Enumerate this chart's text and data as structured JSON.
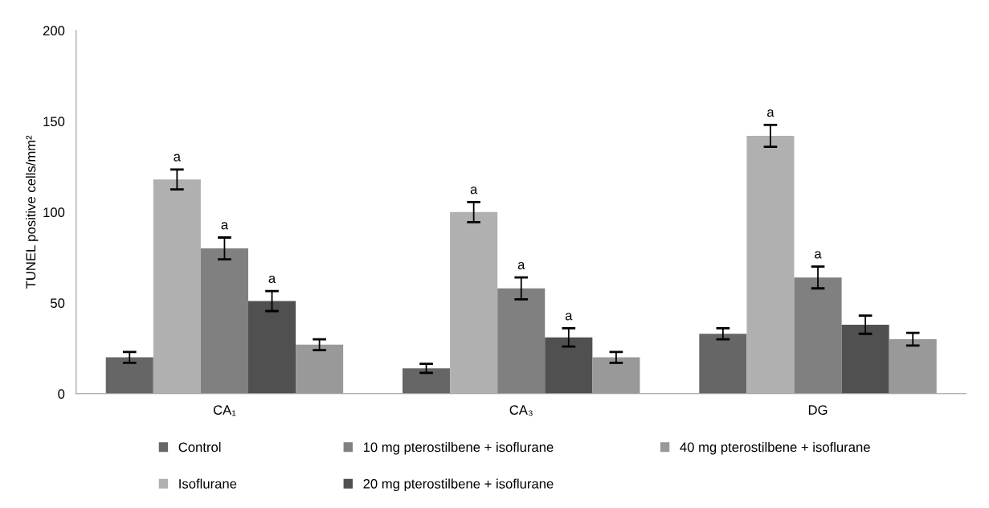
{
  "chart_data": {
    "type": "bar",
    "ylabel": "TUNEL positive cells/mm²",
    "categories": [
      "CA₁",
      "CA₃",
      "DG"
    ],
    "series": [
      {
        "name": "Control",
        "color": "#666666",
        "values": [
          20,
          14,
          33
        ],
        "errors": [
          3,
          2.5,
          3
        ],
        "value_labels": [
          null,
          null,
          null
        ]
      },
      {
        "name": "Isoflurane",
        "color": "#b0b0b0",
        "values": [
          118,
          100,
          142
        ],
        "errors": [
          5.5,
          5.5,
          6
        ],
        "value_labels": [
          "a",
          "a",
          "a"
        ]
      },
      {
        "name": "10 mg pterostilbene + isoflurane",
        "color": "#808080",
        "values": [
          80,
          58,
          64
        ],
        "errors": [
          6,
          6,
          6
        ],
        "value_labels": [
          "a",
          "a",
          "a"
        ]
      },
      {
        "name": "20 mg pterostilbene + isoflurane",
        "color": "#505050",
        "values": [
          51,
          31,
          38
        ],
        "errors": [
          5.5,
          5,
          5
        ],
        "value_labels": [
          "a",
          "a",
          null
        ]
      },
      {
        "name": "40 mg pterostilbene + isoflurane",
        "color": "#999999",
        "values": [
          27,
          20,
          30
        ],
        "errors": [
          3,
          3,
          3.5
        ],
        "value_labels": [
          null,
          null,
          null
        ]
      }
    ],
    "ylim": [
      0,
      200
    ],
    "yticks": [
      0,
      50,
      100,
      150,
      200
    ],
    "grid": false,
    "legend": "bottom"
  }
}
